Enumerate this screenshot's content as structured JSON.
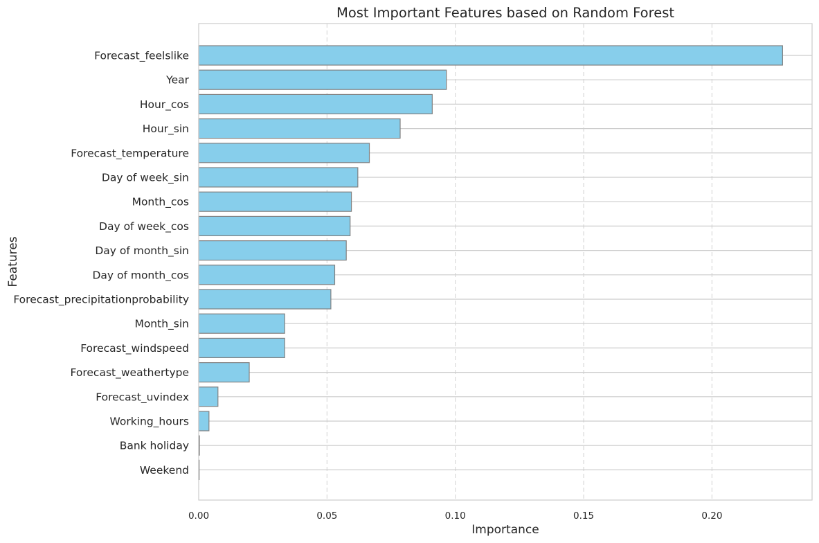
{
  "chart_data": {
    "type": "bar",
    "orientation": "horizontal",
    "title": "Most Important Features based on Random Forest",
    "xlabel": "Importance",
    "ylabel": "Features",
    "xlim": [
      0,
      0.239
    ],
    "xticks": [
      0.0,
      0.05,
      0.1,
      0.15,
      0.2
    ],
    "xtick_labels": [
      "0.00",
      "0.05",
      "0.10",
      "0.15",
      "0.20"
    ],
    "grid": "on",
    "bar_color": "#87CEEB",
    "bar_edge_color": "#808080",
    "categories": [
      "Forecast_feelslike",
      "Year",
      "Hour_cos",
      "Hour_sin",
      "Forecast_temperature",
      "Day of week_sin",
      "Month_cos",
      "Day of week_cos",
      "Day of month_sin",
      "Day of month_cos",
      "Forecast_precipitationprobability",
      "Month_sin",
      "Forecast_windspeed",
      "Forecast_weathertype",
      "Forecast_uvindex",
      "Working_hours",
      "Bank holiday",
      "Weekend"
    ],
    "values": [
      0.2275,
      0.0965,
      0.091,
      0.0785,
      0.0665,
      0.062,
      0.0595,
      0.059,
      0.0575,
      0.053,
      0.0515,
      0.0335,
      0.0335,
      0.0197,
      0.0075,
      0.004,
      0.0003,
      0.0002
    ]
  }
}
